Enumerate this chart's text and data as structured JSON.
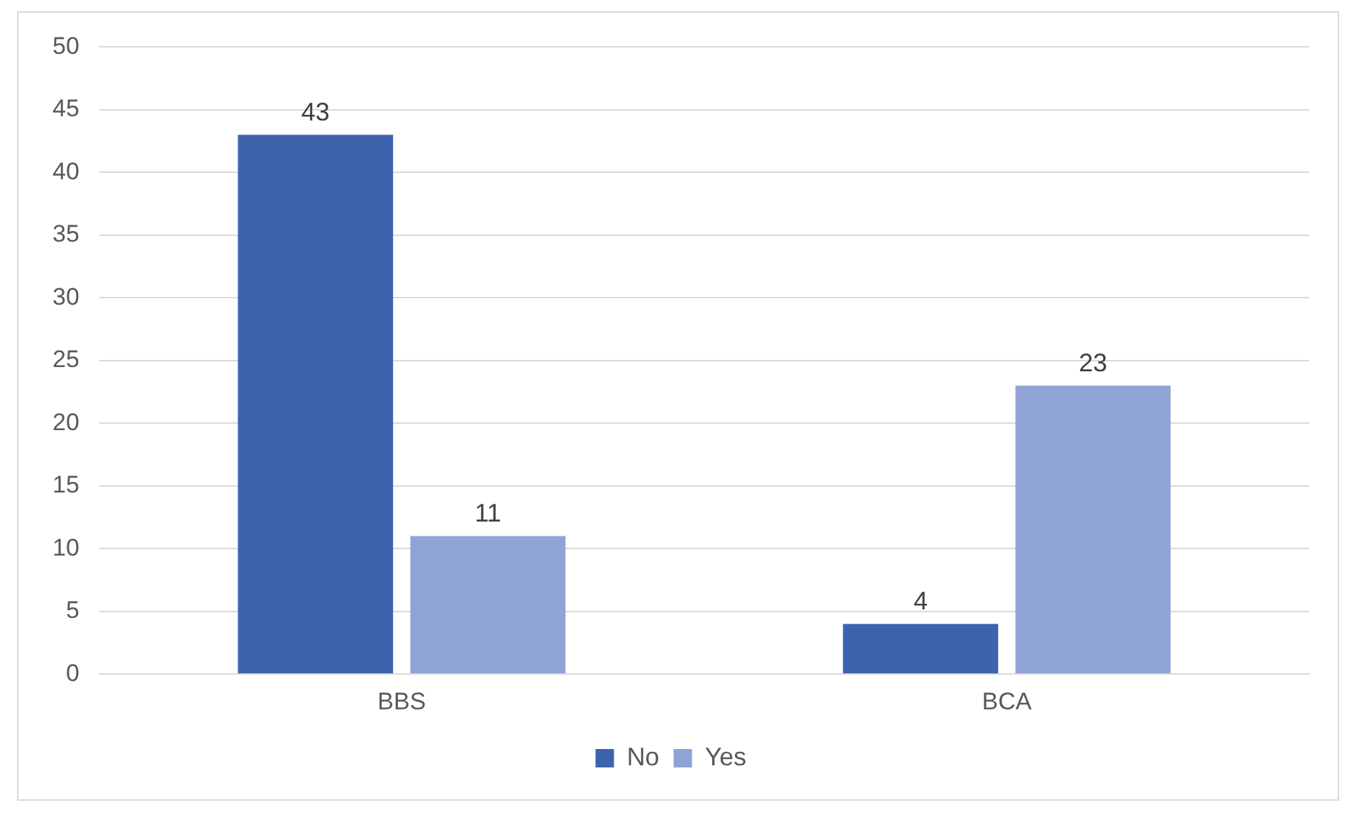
{
  "chart_data": {
    "type": "bar",
    "categories": [
      "BBS",
      "BCA"
    ],
    "series": [
      {
        "name": "No",
        "color": "#3d63ad",
        "values": [
          43,
          4
        ]
      },
      {
        "name": "Yes",
        "color": "#8fa4d5",
        "values": [
          11,
          23
        ]
      }
    ],
    "ylim": [
      0,
      50
    ],
    "yticks": [
      0,
      5,
      10,
      15,
      20,
      25,
      30,
      35,
      40,
      45,
      50
    ],
    "grid": "y",
    "legend": "bottom",
    "data_labels": true
  }
}
